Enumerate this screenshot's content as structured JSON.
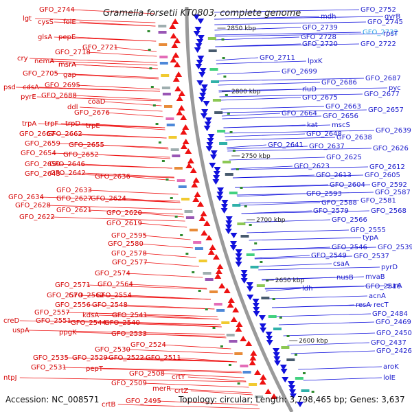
{
  "title": "Gramella forsetii KT0803, complete genome",
  "accession_text": "Accession: NC_008571",
  "topology_text": "Topology: circular; Length: 3,798,465 bp; Genes: 3,637",
  "colors": {
    "forward": "#ee1111",
    "reverse": "#1111dd",
    "highlight": "#29a3e6",
    "backbone": "#9a9a9a",
    "green": "#2e8b2e"
  },
  "ticks": [
    "2850 kbp",
    "2800 kbp",
    "2750 kbp",
    "2700 kbp",
    "2650 kbp",
    "2600 kbp"
  ],
  "left_labels": [
    "GFO_2744",
    "lgt",
    "cysS",
    "folE",
    "glsA",
    "pepE",
    "GFO_2721",
    "GFO_2718",
    "cry",
    "nemA",
    "msrA",
    "msrA",
    "GFO_2705",
    "gap",
    "psd",
    "cdsA",
    "GFO_2695",
    "pyrE",
    "GFO_2688",
    "coaD",
    "ddl",
    "GFO_2676",
    "trpA",
    "trpF",
    "trpD",
    "trpE",
    "GFO_2667",
    "GFO_2662",
    "GFO_2659",
    "GFO_2655",
    "GFO_2654",
    "GFO_2652",
    "GFO_2650",
    "GFO_2646",
    "GFO_2643",
    "GFO_2642",
    "GFO_2636",
    "GFO_2633",
    "GFO_2634",
    "GFO_2627",
    "GFO_2624",
    "GFO_2628",
    "GFO_2621",
    "GFO_2620",
    "GFO_2622",
    "GFO_2619",
    "GFO_2595",
    "GFO_2580",
    "GFO_2578",
    "GFO_2577",
    "GFO_2574",
    "GFO_2571",
    "GFO_2564",
    "GFO_2570",
    "GFO_2562",
    "GFO_2554",
    "GFO_2556",
    "GFO_2548",
    "GFO_2557",
    "kdsA",
    "GFO_2541",
    "creD",
    "GFO_2551",
    "GFO_2544",
    "GFO_2540",
    "uspA",
    "ppgK",
    "GFO_2533",
    "GFO_2524",
    "GFO_2530",
    "GFO_2535",
    "GFO_2529",
    "GFO_2522",
    "GFO_2511",
    "GFO_2531",
    "pepT",
    "ntpJ",
    "GFO_2508",
    "crtY",
    "GFO_2509",
    "crtZ",
    "merR",
    "crtB",
    "GFO_2495"
  ],
  "right_labels": [
    "GFO_2752",
    "mdh",
    "gyrB",
    "GFO_2745",
    "GFO_2739",
    "GFO_2728",
    "GFO_2732",
    "rpsT",
    "GFO_2720",
    "GFO_2722",
    "GFO_2711",
    "lpxK",
    "GFO_2699",
    "GFO_2687",
    "GFO_2686",
    "rluD",
    "pyc",
    "GFO_2675",
    "GFO_2677",
    "GFO_2663",
    "GFO_2657",
    "GFO_2664",
    "GFO_2656",
    "kat",
    "mscS",
    "GFO_2639",
    "GFO_2648",
    "GFO_2638",
    "GFO_2641",
    "GFO_2637",
    "GFO_2626",
    "GFO_2625",
    "GFO_2623",
    "GFO_2612",
    "GFO_2613",
    "GFO_2605",
    "GFO_2604",
    "GFO_2592",
    "GFO_2593",
    "GFO_2587",
    "GFO_2588",
    "GFO_2581",
    "GFO_2579",
    "GFO_2568",
    "GFO_2566",
    "GFO_2555",
    "typA",
    "GFO_2546",
    "GFO_2539",
    "GFO_2549",
    "GFO_2537",
    "csaA",
    "pyrD",
    "nusB",
    "mvaB",
    "ldh",
    "GFO_2516",
    "surA",
    "acnA",
    "resA",
    "recT",
    "GFO_2484",
    "GFO_2469",
    "GFO_2450",
    "GFO_2437",
    "GFO_2426",
    "aroK",
    "lolE"
  ]
}
